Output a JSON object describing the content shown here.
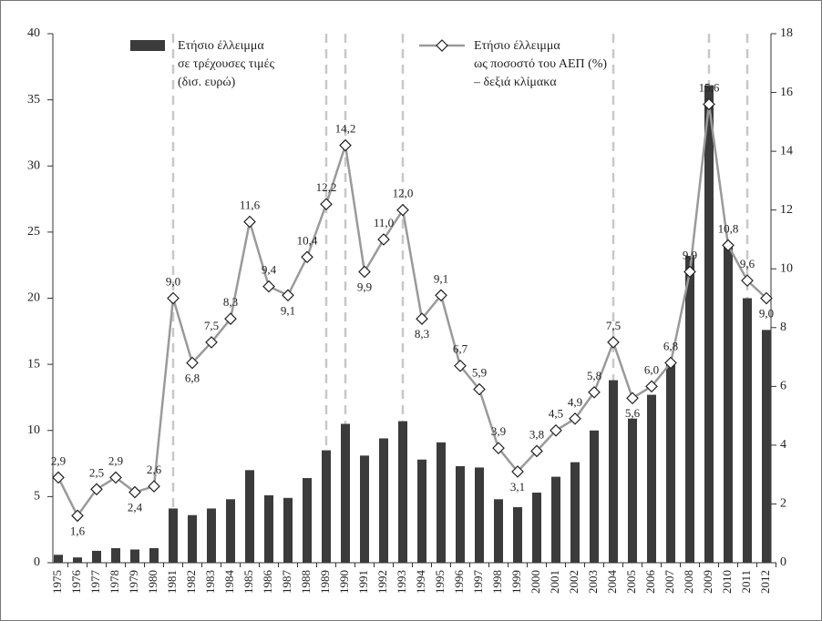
{
  "chart_data": {
    "type": "bar+line",
    "categories": [
      "1975",
      "1976",
      "1977",
      "1978",
      "1979",
      "1980",
      "1981",
      "1982",
      "1983",
      "1984",
      "1985",
      "1986",
      "1987",
      "1988",
      "1989",
      "1990",
      "1991",
      "1992",
      "1993",
      "1994",
      "1995",
      "1996",
      "1997",
      "1998",
      "1999",
      "2000",
      "2001",
      "2002",
      "2003",
      "2004",
      "2005",
      "2006",
      "2007",
      "2008",
      "2009",
      "2010",
      "2011",
      "2012"
    ],
    "series": [
      {
        "name": [
          "Ετήσιο έλλειμμα",
          "σε τρέχουσες τιμές",
          "(δισ. ευρώ)"
        ],
        "type": "bar",
        "color": "#3b3b3b",
        "values": [
          0.6,
          0.4,
          0.9,
          1.1,
          1.0,
          1.1,
          4.1,
          3.6,
          4.1,
          4.8,
          7.0,
          5.1,
          4.9,
          6.4,
          8.5,
          10.5,
          8.1,
          9.4,
          10.7,
          7.8,
          9.1,
          7.3,
          7.2,
          4.8,
          4.2,
          5.3,
          6.5,
          7.6,
          10.0,
          13.8,
          10.9,
          12.7,
          15.0,
          23.2,
          36.1,
          24.0,
          20.0,
          17.6
        ]
      },
      {
        "name": [
          "Ετήσιο έλλειμμα",
          "ως ποσοστό του ΑΕΠ (%)",
          "– δεξιά κλίμακα"
        ],
        "type": "line",
        "axis": "y2",
        "color": "#9a9a9a",
        "values": [
          2.9,
          1.6,
          2.5,
          2.9,
          2.4,
          2.6,
          9.0,
          6.8,
          7.5,
          8.3,
          11.6,
          9.4,
          9.1,
          10.4,
          12.2,
          14.2,
          9.9,
          11.0,
          12.0,
          8.3,
          9.1,
          6.7,
          5.9,
          3.9,
          3.1,
          3.8,
          4.5,
          4.9,
          5.8,
          7.5,
          5.6,
          6.0,
          6.8,
          9.9,
          15.6,
          10.8,
          9.6,
          9.0
        ],
        "value_labels": [
          "2,9",
          "1,6",
          "2,5",
          "2,9",
          "2,4",
          "2,6",
          "9,0",
          "6,8",
          "7,5",
          "8,3",
          "11,6",
          "9,4",
          "9,1",
          "10,4",
          "12,2",
          "14,2",
          "9,9",
          "11,0",
          "12,0",
          "8,3",
          "9,1",
          "6,7",
          "5,9",
          "3,9",
          "3,1",
          "3,8",
          "4,5",
          "4,9",
          "5,8",
          "7,5",
          "5,6",
          "6,0",
          "6,8",
          "9,9",
          "15,6",
          "10,8",
          "9,6",
          "9,0"
        ]
      }
    ],
    "ylim": [
      0,
      40
    ],
    "yticks": [
      0,
      5,
      10,
      15,
      20,
      25,
      30,
      35,
      40
    ],
    "y2lim": [
      0,
      18
    ],
    "y2ticks": [
      0,
      2,
      4,
      6,
      8,
      10,
      12,
      14,
      16,
      18
    ],
    "dashed_lines": [
      "1981",
      "1989",
      "1990",
      "1993",
      "2004",
      "2009",
      "2011"
    ]
  }
}
